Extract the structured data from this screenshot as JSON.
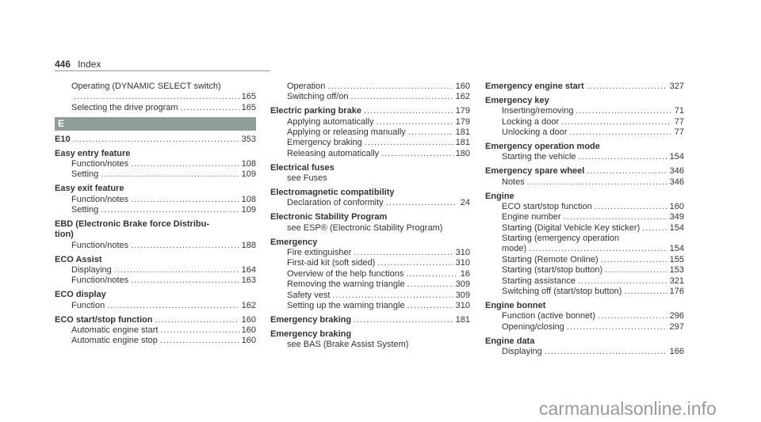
{
  "header": {
    "page_number": "446",
    "title": "Index"
  },
  "columns": [
    {
      "groups": [
        {
          "lines": [
            {
              "text": "Operating (DYNAMIC SELECT switch)",
              "sub": true
            },
            {
              "text": "",
              "page": "165",
              "sub": true,
              "dots": true
            },
            {
              "text": "Selecting the drive program",
              "page": "165",
              "sub": true,
              "dots": true
            }
          ]
        },
        {
          "letter": "E"
        },
        {
          "lines": [
            {
              "text": "E10",
              "page": "353",
              "bold": true,
              "dots": true
            }
          ]
        },
        {
          "lines": [
            {
              "text": "Easy entry feature",
              "bold": true
            },
            {
              "text": "Function/notes",
              "page": "108",
              "sub": true,
              "dots": true
            },
            {
              "text": "Setting",
              "page": "109",
              "sub": true,
              "dots": true
            }
          ]
        },
        {
          "lines": [
            {
              "text": "Easy exit feature",
              "bold": true
            },
            {
              "text": "Function/notes",
              "page": "108",
              "sub": true,
              "dots": true
            },
            {
              "text": "Setting",
              "page": "109",
              "sub": true,
              "dots": true
            }
          ]
        },
        {
          "lines": [
            {
              "text": "EBD (Electronic Brake force Distribu-",
              "bold": true
            },
            {
              "text": "tion)",
              "bold": true
            },
            {
              "text": "Function/notes",
              "page": "188",
              "sub": true,
              "dots": true
            }
          ]
        },
        {
          "lines": [
            {
              "text": "ECO Assist",
              "bold": true
            },
            {
              "text": "Displaying",
              "page": "164",
              "sub": true,
              "dots": true
            },
            {
              "text": "Function/notes",
              "page": "163",
              "sub": true,
              "dots": true
            }
          ]
        },
        {
          "lines": [
            {
              "text": "ECO display",
              "bold": true
            },
            {
              "text": "Function",
              "page": "162",
              "sub": true,
              "dots": true
            }
          ]
        },
        {
          "lines": [
            {
              "text": "ECO start/stop function",
              "page": "160",
              "bold": true,
              "dots": true
            },
            {
              "text": "Automatic engine start",
              "page": "160",
              "sub": true,
              "dots": true
            },
            {
              "text": "Automatic engine stop",
              "page": "160",
              "sub": true,
              "dots": true
            }
          ]
        }
      ]
    },
    {
      "groups": [
        {
          "lines": [
            {
              "text": "Operation",
              "page": "160",
              "sub": true,
              "dots": true
            },
            {
              "text": "Switching off/on",
              "page": "162",
              "sub": true,
              "dots": true
            }
          ]
        },
        {
          "lines": [
            {
              "text": "Electric parking brake",
              "page": "179",
              "bold": true,
              "dots": true
            },
            {
              "text": "Applying automatically",
              "page": "179",
              "sub": true,
              "dots": true
            },
            {
              "text": "Applying or releasing manually",
              "page": "181",
              "sub": true,
              "dots": true
            },
            {
              "text": "Emergency braking",
              "page": "181",
              "sub": true,
              "dots": true
            },
            {
              "text": "Releasing automatically",
              "page": "180",
              "sub": true,
              "dots": true
            }
          ]
        },
        {
          "lines": [
            {
              "text": "Electrical fuses",
              "bold": true
            },
            {
              "text": "see Fuses",
              "sub": true
            }
          ]
        },
        {
          "lines": [
            {
              "text": "Electromagnetic compatibility",
              "bold": true
            },
            {
              "text": "Declaration of conformity",
              "page": "24",
              "sub": true,
              "dots": true
            }
          ]
        },
        {
          "lines": [
            {
              "text": "Electronic Stability Program",
              "bold": true
            },
            {
              "text": "see ESP® (Electronic Stability Program)",
              "sub": true
            }
          ]
        },
        {
          "lines": [
            {
              "text": "Emergency",
              "bold": true
            },
            {
              "text": "Fire extinguisher",
              "page": "310",
              "sub": true,
              "dots": true
            },
            {
              "text": "First-aid kit (soft sided)",
              "page": "310",
              "sub": true,
              "dots": true
            },
            {
              "text": "Overview of the help functions",
              "page": "16",
              "sub": true,
              "dots": true
            },
            {
              "text": "Removing the warning triangle",
              "page": "309",
              "sub": true,
              "dots": true
            },
            {
              "text": "Safety vest",
              "page": "309",
              "sub": true,
              "dots": true
            },
            {
              "text": "Setting up the warning triangle",
              "page": "310",
              "sub": true,
              "dots": true
            }
          ]
        },
        {
          "lines": [
            {
              "text": "Emergency braking",
              "page": "181",
              "bold": true,
              "dots": true
            }
          ]
        },
        {
          "lines": [
            {
              "text": "Emergency braking",
              "bold": true
            },
            {
              "text": "see BAS (Brake Assist System)",
              "sub": true
            }
          ]
        }
      ]
    },
    {
      "groups": [
        {
          "lines": [
            {
              "text": "Emergency engine start",
              "page": "327",
              "bold": true,
              "dots": true
            }
          ]
        },
        {
          "lines": [
            {
              "text": "Emergency key",
              "bold": true
            },
            {
              "text": "Inserting/removing",
              "page": "71",
              "sub": true,
              "dots": true
            },
            {
              "text": "Locking a door",
              "page": "77",
              "sub": true,
              "dots": true
            },
            {
              "text": "Unlocking a door",
              "page": "77",
              "sub": true,
              "dots": true
            }
          ]
        },
        {
          "lines": [
            {
              "text": "Emergency operation mode",
              "bold": true
            },
            {
              "text": "Starting the vehicle",
              "page": "154",
              "sub": true,
              "dots": true
            }
          ]
        },
        {
          "lines": [
            {
              "text": "Emergency spare wheel",
              "page": "346",
              "bold": true,
              "dots": true
            },
            {
              "text": "Notes",
              "page": "346",
              "sub": true,
              "dots": true
            }
          ]
        },
        {
          "lines": [
            {
              "text": "Engine",
              "bold": true
            },
            {
              "text": "ECO start/stop function",
              "page": "160",
              "sub": true,
              "dots": true
            },
            {
              "text": "Engine number",
              "page": "349",
              "sub": true,
              "dots": true
            },
            {
              "text": "Starting (Digital Vehicle Key sticker)",
              "page": "154",
              "sub": true,
              "dots": true
            },
            {
              "text": "Starting (emergency operation",
              "sub": true
            },
            {
              "text": "mode)",
              "page": "154",
              "sub": true,
              "dots": true
            },
            {
              "text": "Starting (Remote Online)",
              "page": "155",
              "sub": true,
              "dots": true
            },
            {
              "text": "Starting (start/stop button)",
              "page": "153",
              "sub": true,
              "dots": true
            },
            {
              "text": "Starting assistance",
              "page": "321",
              "sub": true,
              "dots": true
            },
            {
              "text": "Switching off (start/stop button)",
              "page": "176",
              "sub": true,
              "dots": true
            }
          ]
        },
        {
          "lines": [
            {
              "text": "Engine bonnet",
              "bold": true
            },
            {
              "text": "Function (active bonnet)",
              "page": "296",
              "sub": true,
              "dots": true
            },
            {
              "text": "Opening/closing",
              "page": "297",
              "sub": true,
              "dots": true
            }
          ]
        },
        {
          "lines": [
            {
              "text": "Engine data",
              "bold": true
            },
            {
              "text": "Displaying",
              "page": "166",
              "sub": true,
              "dots": true
            }
          ]
        }
      ]
    }
  ],
  "watermark": "carmanualsonline.info",
  "colors": {
    "text": "#333333",
    "section_bar": "#8e9c9a",
    "watermark": "#9a9a9a"
  }
}
